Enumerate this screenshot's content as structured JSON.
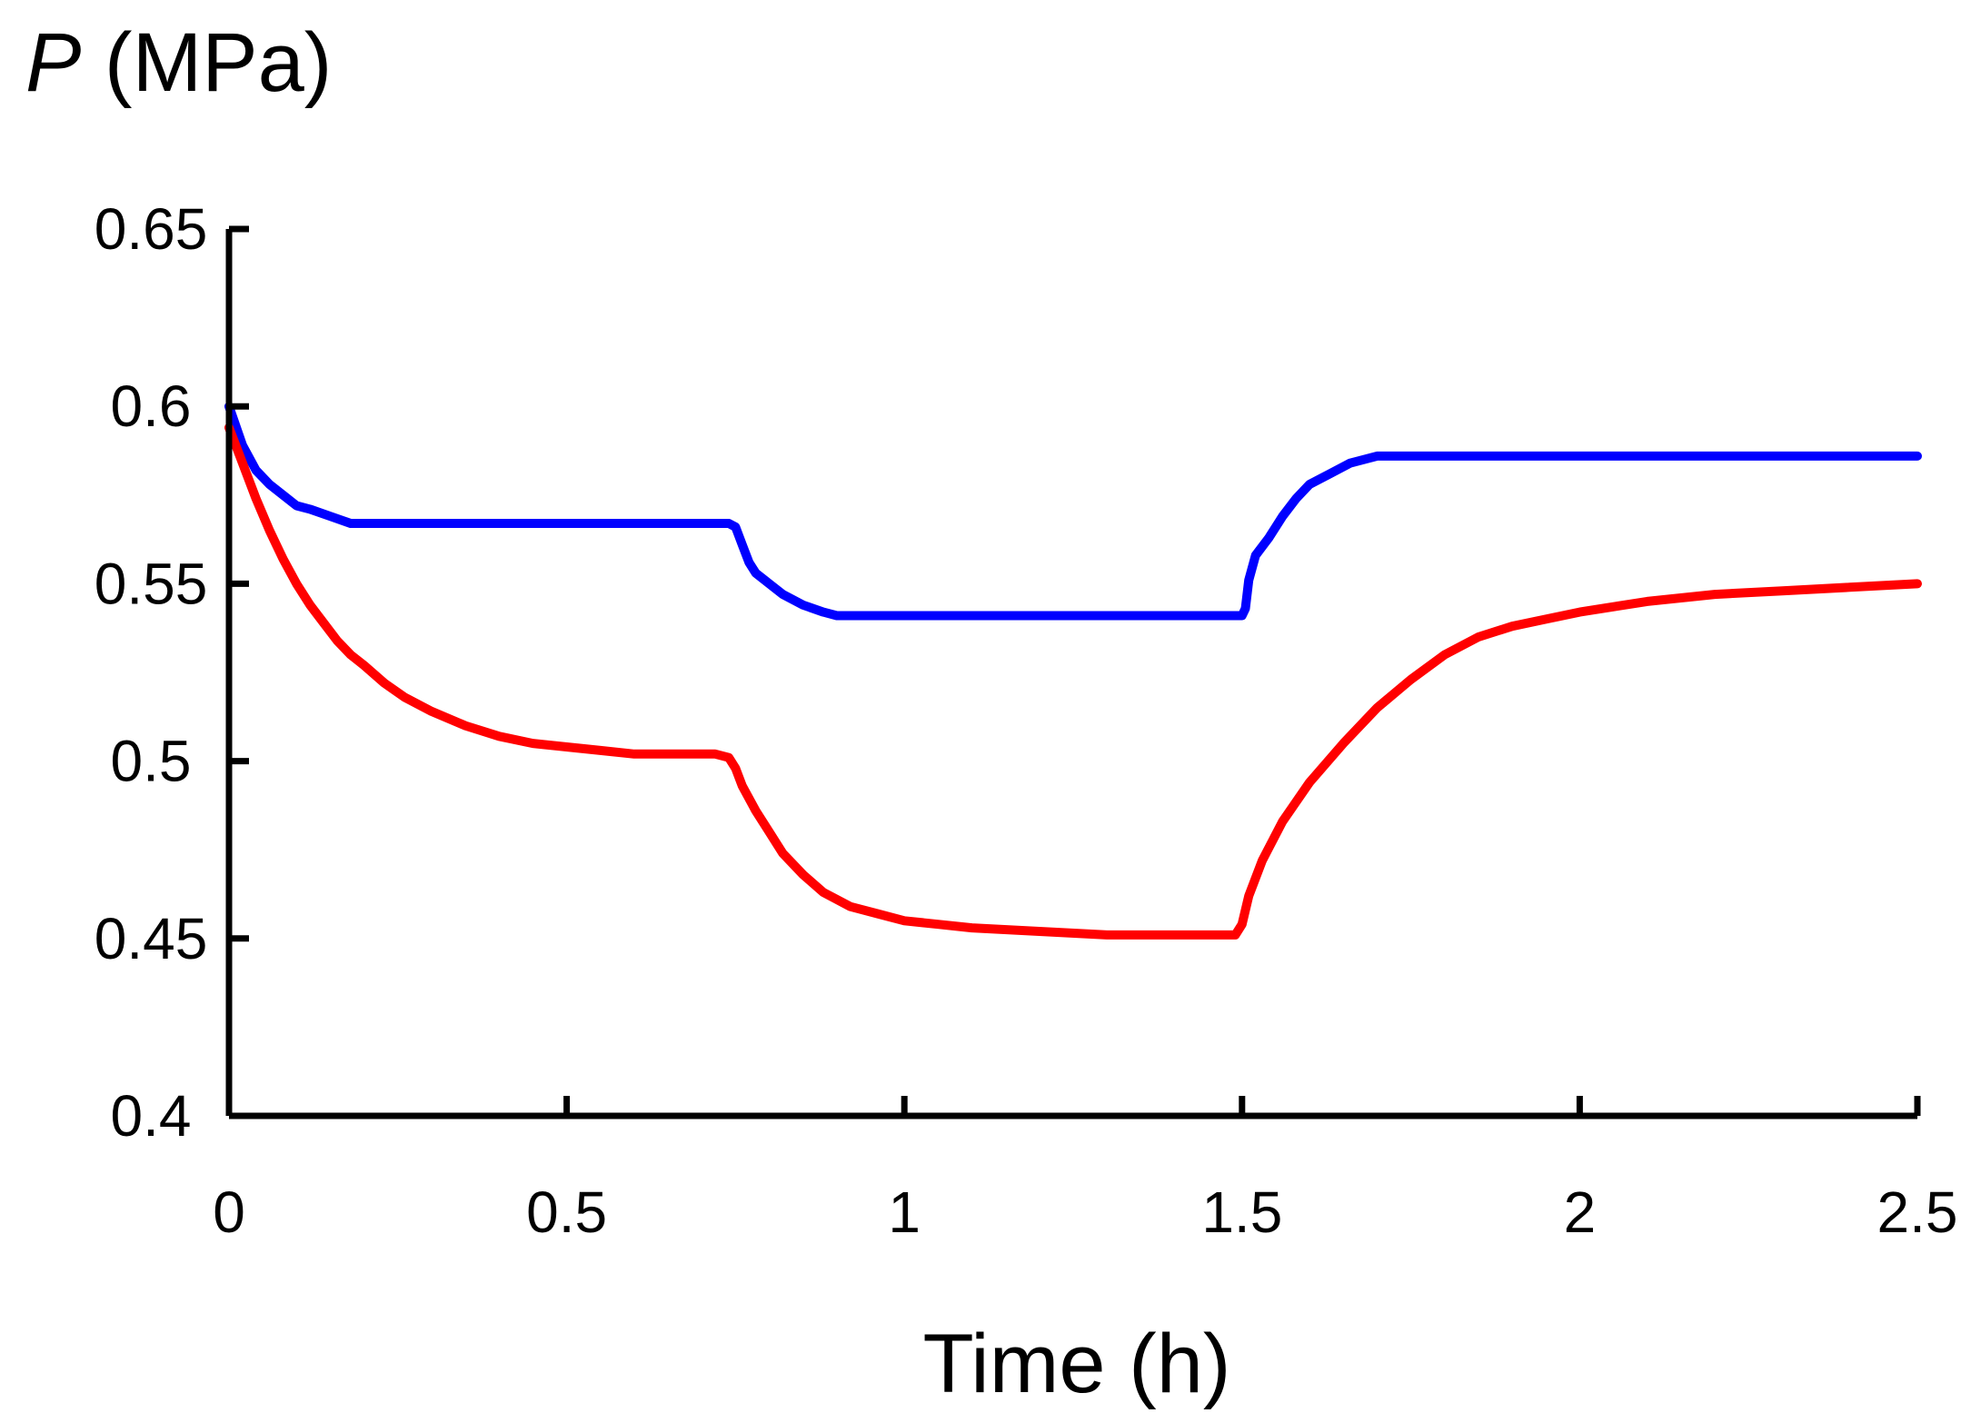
{
  "chart_data": {
    "type": "line",
    "title": "",
    "ylabel_symbol": "P",
    "ylabel_unit": " (MPa)",
    "xlabel": "Time (h)",
    "xlim": [
      0,
      2.5
    ],
    "ylim": [
      0.4,
      0.65
    ],
    "xticks": [
      0,
      0.5,
      1,
      1.5,
      2,
      2.5
    ],
    "xtick_labels": [
      "0",
      "0.5",
      "1",
      "1.5",
      "2",
      "2.5"
    ],
    "yticks": [
      0.4,
      0.45,
      0.5,
      0.55,
      0.6,
      0.65
    ],
    "ytick_labels": [
      "0.4",
      "0.45",
      "0.5",
      "0.55",
      "0.6",
      "0.65"
    ],
    "grid": false,
    "legend": "none",
    "series": [
      {
        "name": "blue",
        "color": "#0000ff",
        "x": [
          0,
          0.02,
          0.04,
          0.06,
          0.08,
          0.1,
          0.12,
          0.15,
          0.18,
          0.25,
          0.5,
          0.74,
          0.75,
          0.76,
          0.77,
          0.78,
          0.8,
          0.82,
          0.85,
          0.88,
          0.9,
          1.0,
          1.2,
          1.4,
          1.5,
          1.505,
          1.51,
          1.52,
          1.54,
          1.56,
          1.58,
          1.6,
          1.63,
          1.66,
          1.7,
          1.8,
          2.0,
          2.5
        ],
        "y": [
          0.6,
          0.589,
          0.582,
          0.578,
          0.575,
          0.572,
          0.571,
          0.569,
          0.567,
          0.567,
          0.567,
          0.567,
          0.566,
          0.561,
          0.556,
          0.553,
          0.55,
          0.547,
          0.544,
          0.542,
          0.541,
          0.541,
          0.541,
          0.541,
          0.541,
          0.543,
          0.551,
          0.558,
          0.563,
          0.569,
          0.574,
          0.578,
          0.581,
          0.584,
          0.586,
          0.586,
          0.586,
          0.586
        ]
      },
      {
        "name": "red",
        "color": "#ff0000",
        "x": [
          0,
          0.02,
          0.04,
          0.06,
          0.08,
          0.1,
          0.12,
          0.14,
          0.16,
          0.18,
          0.2,
          0.23,
          0.26,
          0.3,
          0.35,
          0.4,
          0.45,
          0.5,
          0.55,
          0.6,
          0.65,
          0.7,
          0.72,
          0.74,
          0.75,
          0.76,
          0.78,
          0.8,
          0.82,
          0.85,
          0.88,
          0.92,
          0.96,
          1.0,
          1.05,
          1.1,
          1.2,
          1.3,
          1.4,
          1.49,
          1.5,
          1.51,
          1.53,
          1.56,
          1.6,
          1.65,
          1.7,
          1.75,
          1.8,
          1.85,
          1.9,
          1.95,
          2.0,
          2.1,
          2.2,
          2.3,
          2.4,
          2.5
        ],
        "y": [
          0.594,
          0.584,
          0.574,
          0.565,
          0.557,
          0.55,
          0.544,
          0.539,
          0.534,
          0.53,
          0.527,
          0.522,
          0.518,
          0.514,
          0.51,
          0.507,
          0.505,
          0.504,
          0.503,
          0.502,
          0.502,
          0.502,
          0.502,
          0.501,
          0.498,
          0.493,
          0.486,
          0.48,
          0.474,
          0.468,
          0.463,
          0.459,
          0.457,
          0.455,
          0.454,
          0.453,
          0.452,
          0.451,
          0.451,
          0.451,
          0.454,
          0.462,
          0.472,
          0.483,
          0.494,
          0.505,
          0.515,
          0.523,
          0.53,
          0.535,
          0.538,
          0.54,
          0.542,
          0.545,
          0.547,
          0.548,
          0.549,
          0.55
        ]
      }
    ]
  }
}
